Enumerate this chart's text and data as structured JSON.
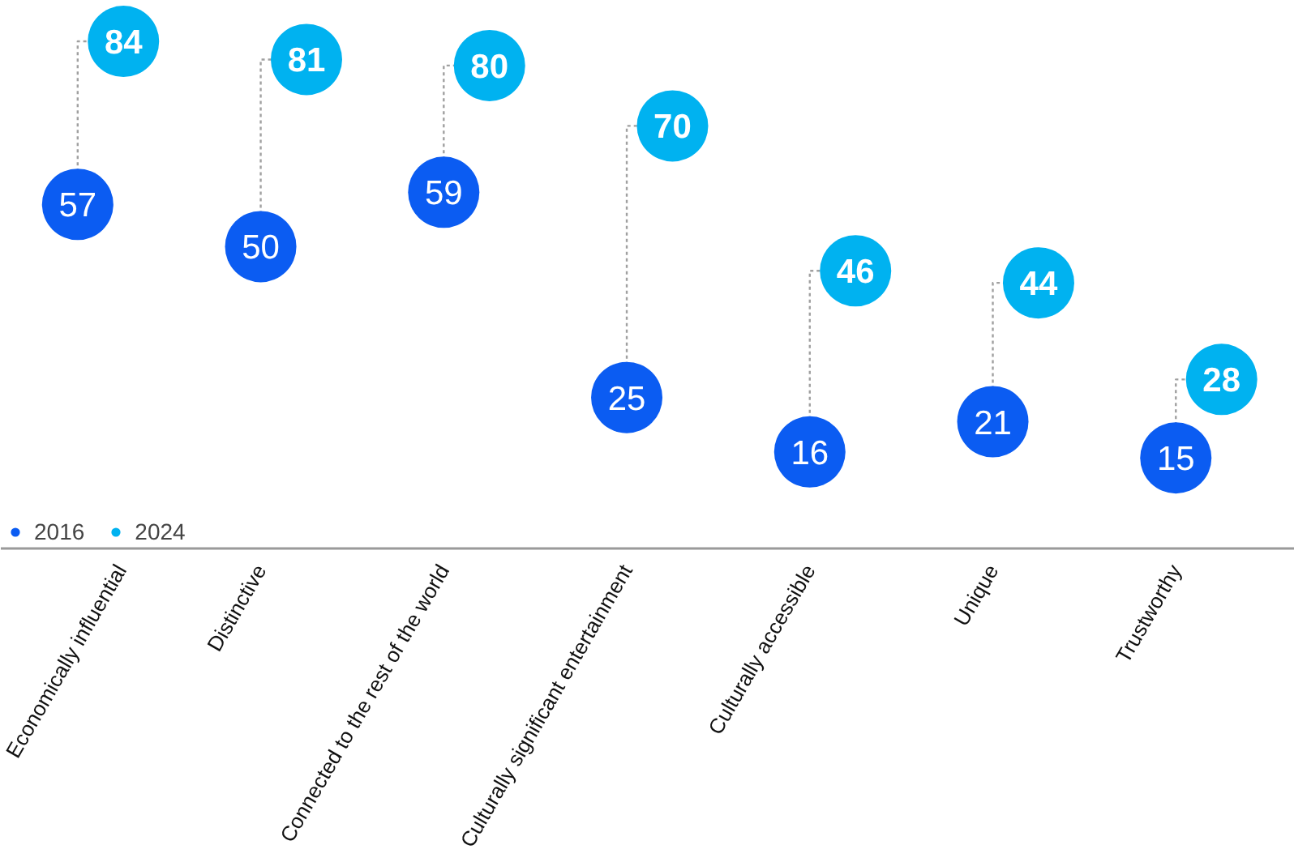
{
  "chart_data": {
    "type": "scatter",
    "categories": [
      "Economically influential",
      "Distinctive",
      "Connected to the rest of the world",
      "Culturally significant entertainment",
      "Culturally accessible",
      "Unique",
      "Trustworthy"
    ],
    "series": [
      {
        "name": "2016",
        "color": "#0b5cf2",
        "values": [
          57,
          50,
          59,
          25,
          16,
          21,
          15
        ]
      },
      {
        "name": "2024",
        "color": "#00b2f0",
        "values": [
          84,
          81,
          80,
          70,
          46,
          44,
          28
        ]
      }
    ],
    "data_labels": true,
    "legend": "bottom left",
    "marker": "circle",
    "line_style": "dotted",
    "grid": false
  }
}
